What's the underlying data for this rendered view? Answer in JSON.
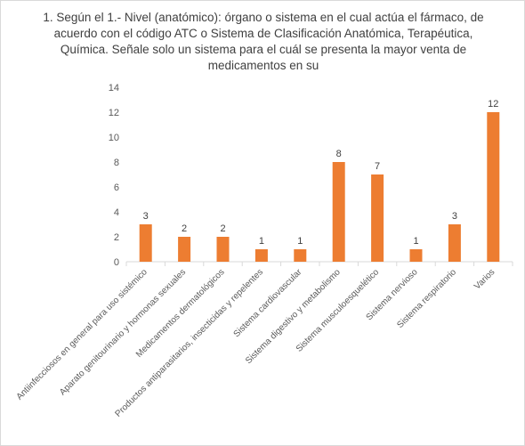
{
  "chart_data": {
    "type": "bar",
    "title": "1. Según el 1.- Nivel (anatómico): órgano o sistema en el cual actúa el fármaco, de acuerdo con el código ATC o Sistema de Clasificación Anatómica, Terapéutica, Química. Señale solo un sistema para el cuál se presenta la mayor venta de medicamentos en su",
    "categories": [
      "Antiinfecciosos en general para uso sistémico",
      "Aparato genitourinario y hormonas sexuales",
      "Medicamentos dermatológicos",
      "Productos antiparasitarios, insecticidas y repelentes",
      "Sistema cardiovascular",
      "Sistema digestivo y metabolismo",
      "Sistema musculoesquelético",
      "Sistema nervioso",
      "Sistema respiratorio",
      "Varios"
    ],
    "values": [
      3,
      2,
      2,
      1,
      1,
      8,
      7,
      1,
      3,
      12
    ],
    "ylim": [
      0,
      14
    ],
    "yticks": [
      0,
      2,
      4,
      6,
      8,
      10,
      12,
      14
    ],
    "bar_color": "#ED7D31",
    "grid": false,
    "legend": "none"
  }
}
